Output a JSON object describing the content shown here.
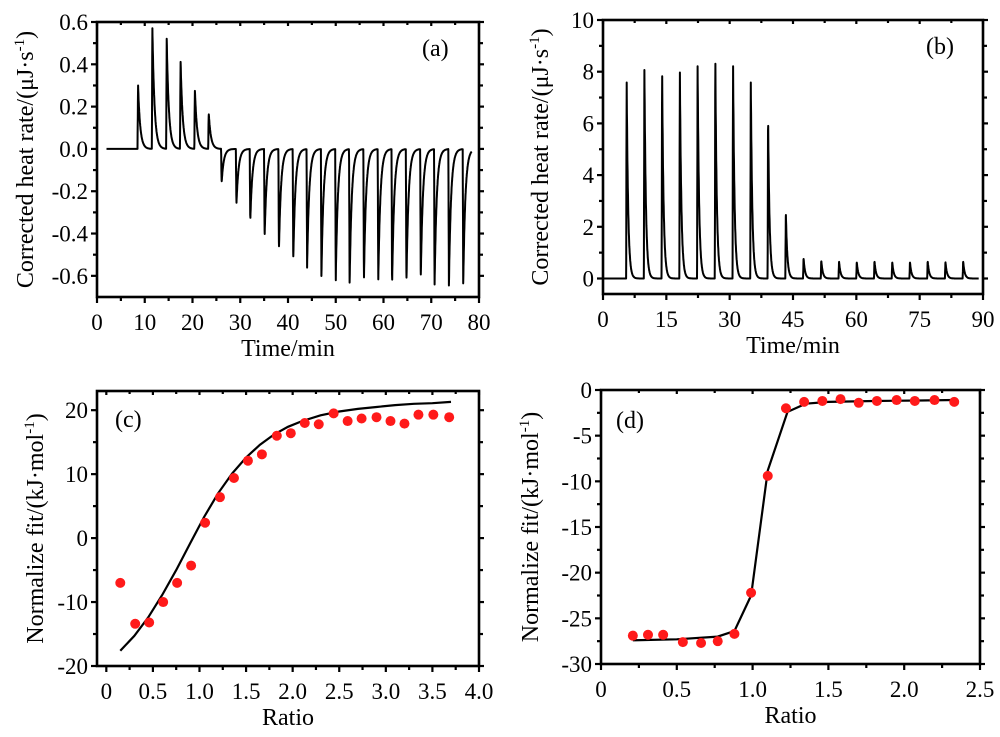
{
  "figure": {
    "point_color": "#ff1a1a",
    "line_color": "#000000"
  },
  "chart_data": [
    {
      "id": "a",
      "type": "line",
      "panel_tag": "(a)",
      "tag_position": "top-right",
      "title": "",
      "xlabel": "Time/min",
      "ylabel": "Corrected heat rate/(μJ·s",
      "ylabel_superscript": "-1",
      "ylabel_suffix": ")",
      "xlim": [
        0,
        80
      ],
      "ylim": [
        -0.7,
        0.6
      ],
      "xticks": [
        0,
        10,
        20,
        30,
        40,
        50,
        60,
        70,
        80
      ],
      "xtick_labels": [
        "0",
        "10",
        "20",
        "30",
        "40",
        "50",
        "60",
        "70",
        "80"
      ],
      "yticks": [
        -0.6,
        -0.4,
        -0.2,
        0.0,
        0.2,
        0.4,
        0.6
      ],
      "ytick_labels": [
        "-0.6",
        "-0.4",
        "-0.2",
        "0.0",
        "0.2",
        "0.4",
        "0.6"
      ],
      "baseline": 0.0,
      "trace_start": 2,
      "trace_end": 78.5,
      "series": [
        {
          "name": "injection peaks",
          "peak_times": [
            8.6,
            11.6,
            14.6,
            17.5,
            20.5,
            23.4,
            26.1,
            29.2,
            32.1,
            35.1,
            38.1,
            41.1,
            44.0,
            47.0,
            50.0,
            52.9,
            55.9,
            58.9,
            61.8,
            64.8,
            67.8,
            70.7,
            73.7,
            76.7
          ],
          "peak_values": [
            0.3,
            0.57,
            0.52,
            0.42,
            0.28,
            0.17,
            -0.16,
            -0.26,
            -0.34,
            -0.42,
            -0.48,
            -0.53,
            -0.56,
            -0.6,
            -0.62,
            -0.645,
            -0.62,
            -0.63,
            -0.645,
            -0.635,
            -0.62,
            -0.64,
            -0.645,
            -0.635
          ]
        }
      ]
    },
    {
      "id": "b",
      "type": "line",
      "panel_tag": "(b)",
      "tag_position": "top-right",
      "title": "",
      "xlabel": "Time/min",
      "ylabel": "Corrected heat rate/(μJ·s",
      "ylabel_superscript": "-1",
      "ylabel_suffix": ")",
      "xlim": [
        0,
        90
      ],
      "ylim": [
        -0.6,
        10
      ],
      "xticks": [
        0,
        15,
        30,
        45,
        60,
        75,
        90
      ],
      "xtick_labels": [
        "0",
        "15",
        "30",
        "45",
        "60",
        "75",
        "90"
      ],
      "yticks": [
        0,
        2,
        4,
        6,
        8,
        10
      ],
      "ytick_labels": [
        "0",
        "2",
        "4",
        "6",
        "8",
        "10"
      ],
      "baseline": 0.0,
      "trace_start": 0,
      "trace_end": 89,
      "series": [
        {
          "name": "injection peaks",
          "peak_times": [
            5.6,
            9.8,
            14.0,
            18.2,
            22.4,
            26.6,
            30.8,
            35.0,
            39.1,
            43.3,
            47.5,
            51.7,
            55.9,
            60.1,
            64.3,
            68.5,
            72.7,
            76.9,
            81.1,
            85.3
          ],
          "peak_values": [
            7.8,
            8.3,
            8.05,
            8.2,
            8.45,
            8.55,
            8.45,
            7.8,
            6.25,
            2.6,
            0.8,
            0.7,
            0.68,
            0.65,
            0.68,
            0.65,
            0.65,
            0.68,
            0.66,
            0.68
          ]
        }
      ]
    },
    {
      "id": "c",
      "type": "scatter",
      "panel_tag": "(c)",
      "tag_position": "top-left",
      "title": "",
      "xlabel": "Ratio",
      "ylabel": "Normalize fit/(kJ·mol",
      "ylabel_superscript": "-1",
      "ylabel_suffix": ")",
      "xlim": [
        -0.1,
        4.0
      ],
      "ylim": [
        -20,
        23
      ],
      "xticks": [
        0,
        0.5,
        1.0,
        1.5,
        2.0,
        2.5,
        3.0,
        3.5,
        4.0
      ],
      "xtick_labels": [
        "0",
        "0.5",
        "1.0",
        "1.5",
        "2.0",
        "2.5",
        "3.0",
        "3.5",
        "4.0"
      ],
      "yticks": [
        -20,
        -10,
        0,
        10,
        20
      ],
      "ytick_labels": [
        "-20",
        "-10",
        "0",
        "10",
        "20"
      ],
      "series": [
        {
          "name": "measured",
          "kind": "points",
          "x": [
            0.15,
            0.31,
            0.46,
            0.61,
            0.76,
            0.91,
            1.06,
            1.22,
            1.37,
            1.52,
            1.67,
            1.83,
            1.98,
            2.13,
            2.28,
            2.44,
            2.59,
            2.74,
            2.9,
            3.05,
            3.2,
            3.35,
            3.51,
            3.68
          ],
          "y": [
            -7.0,
            -13.4,
            -13.2,
            -10.0,
            -7.0,
            -4.3,
            2.4,
            6.4,
            9.4,
            12.1,
            13.1,
            16.0,
            16.4,
            18.0,
            17.8,
            19.5,
            18.3,
            18.7,
            18.9,
            18.3,
            17.9,
            19.3,
            19.3,
            18.9
          ]
        },
        {
          "name": "fit",
          "kind": "line",
          "x": [
            0.15,
            0.3,
            0.45,
            0.6,
            0.75,
            0.9,
            1.05,
            1.2,
            1.35,
            1.5,
            1.65,
            1.8,
            1.95,
            2.1,
            2.3,
            2.5,
            2.7,
            2.9,
            3.1,
            3.3,
            3.5,
            3.7
          ],
          "y": [
            -17.6,
            -15.3,
            -12.4,
            -8.9,
            -5.0,
            -0.8,
            3.3,
            7.0,
            10.1,
            12.6,
            14.6,
            16.2,
            17.4,
            18.3,
            19.2,
            19.8,
            20.2,
            20.5,
            20.8,
            21.0,
            21.1,
            21.3
          ]
        }
      ]
    },
    {
      "id": "d",
      "type": "scatter",
      "panel_tag": "(d)",
      "tag_position": "top-left",
      "title": "",
      "xlabel": "Ratio",
      "ylabel": "Normalize fit/(kJ·mol",
      "ylabel_superscript": "-1",
      "ylabel_suffix": ")",
      "xlim": [
        0,
        2.5
      ],
      "ylim": [
        -30,
        0
      ],
      "xticks": [
        0,
        0.5,
        1.0,
        1.5,
        2.0,
        2.5
      ],
      "xtick_labels": [
        "0",
        "0.5",
        "1.0",
        "1.5",
        "2.0",
        "2.5"
      ],
      "yticks": [
        -30,
        -25,
        -20,
        -15,
        -10,
        -5,
        0
      ],
      "ytick_labels": [
        "-30",
        "-25",
        "-20",
        "-15",
        "-10",
        "-5",
        "0"
      ],
      "series": [
        {
          "name": "measured",
          "kind": "points",
          "x": [
            0.21,
            0.31,
            0.41,
            0.54,
            0.66,
            0.77,
            0.88,
            0.99,
            1.1,
            1.22,
            1.34,
            1.46,
            1.58,
            1.7,
            1.82,
            1.95,
            2.07,
            2.2,
            2.33
          ],
          "y": [
            -26.9,
            -26.8,
            -26.8,
            -27.6,
            -27.7,
            -27.5,
            -26.7,
            -22.2,
            -9.4,
            -2.0,
            -1.3,
            -1.2,
            -1.0,
            -1.4,
            -1.2,
            -1.1,
            -1.2,
            -1.1,
            -1.3
          ]
        },
        {
          "name": "fit",
          "kind": "line",
          "x": [
            0.21,
            0.5,
            0.77,
            0.88,
            0.99,
            1.1,
            1.23,
            1.35,
            1.5,
            1.8,
            2.1,
            2.33
          ],
          "y": [
            -27.4,
            -27.3,
            -27.0,
            -26.4,
            -22.5,
            -8.8,
            -2.4,
            -1.5,
            -1.3,
            -1.2,
            -1.15,
            -1.1
          ]
        }
      ]
    }
  ]
}
